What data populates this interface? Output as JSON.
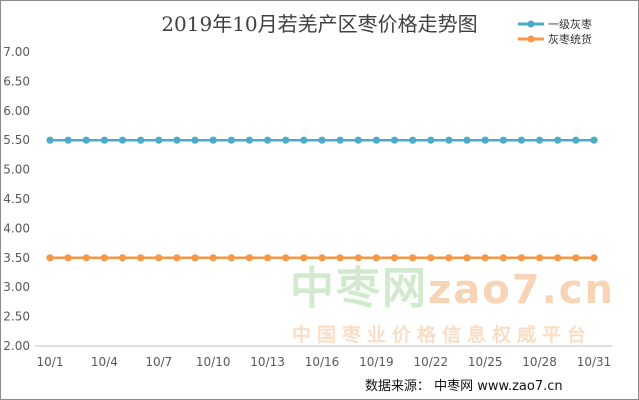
{
  "chart_data": {
    "type": "line",
    "title": "2019年10月若羌产区枣价格走势图",
    "xlabel": "",
    "ylabel": "",
    "ylim": [
      2.0,
      7.0
    ],
    "yticks": [
      "2.00",
      "2.50",
      "3.00",
      "3.50",
      "4.00",
      "4.50",
      "5.00",
      "5.50",
      "6.00",
      "6.50",
      "7.00"
    ],
    "x": [
      "10/1",
      "10/2",
      "10/3",
      "10/4",
      "10/5",
      "10/6",
      "10/7",
      "10/8",
      "10/9",
      "10/10",
      "10/11",
      "10/12",
      "10/13",
      "10/14",
      "10/15",
      "10/16",
      "10/17",
      "10/18",
      "10/19",
      "10/20",
      "10/21",
      "10/22",
      "10/23",
      "10/24",
      "10/25",
      "10/26",
      "10/27",
      "10/28",
      "10/29",
      "10/30",
      "10/31"
    ],
    "xtick_labels": [
      "10/1",
      "10/4",
      "10/7",
      "10/10",
      "10/13",
      "10/16",
      "10/19",
      "10/22",
      "10/25",
      "10/28",
      "10/31"
    ],
    "grid": false,
    "legend_position": "top-right",
    "series": [
      {
        "name": "一级灰枣",
        "color": "#4bacc6",
        "values": [
          5.5,
          5.5,
          5.5,
          5.5,
          5.5,
          5.5,
          5.5,
          5.5,
          5.5,
          5.5,
          5.5,
          5.5,
          5.5,
          5.5,
          5.5,
          5.5,
          5.5,
          5.5,
          5.5,
          5.5,
          5.5,
          5.5,
          5.5,
          5.5,
          5.5,
          5.5,
          5.5,
          5.5,
          5.5,
          5.5,
          5.5
        ]
      },
      {
        "name": "灰枣统货",
        "color": "#f79646",
        "values": [
          3.5,
          3.5,
          3.5,
          3.5,
          3.5,
          3.5,
          3.5,
          3.5,
          3.5,
          3.5,
          3.5,
          3.5,
          3.5,
          3.5,
          3.5,
          3.5,
          3.5,
          3.5,
          3.5,
          3.5,
          3.5,
          3.5,
          3.5,
          3.5,
          3.5,
          3.5,
          3.5,
          3.5,
          3.5,
          3.5,
          3.5
        ]
      }
    ]
  },
  "watermark": {
    "logo_cn": "中枣网",
    "logo_domain": "zao7.cn",
    "tagline": "中国枣业价格信息权威平台"
  },
  "footer": {
    "source": "数据来源： 中枣网 www.zao7.cn"
  }
}
